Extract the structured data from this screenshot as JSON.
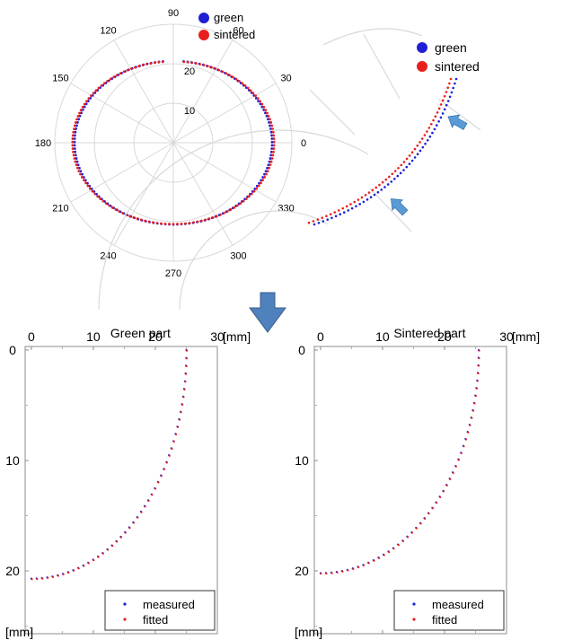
{
  "chart_data": [
    {
      "type": "scatter",
      "subtype": "polar",
      "title": "",
      "angle_ticks": [
        "0",
        "30",
        "60",
        "90",
        "120",
        "150",
        "180",
        "210",
        "240",
        "270",
        "300",
        "330"
      ],
      "radial_ticks": [
        "10",
        "20"
      ],
      "rlim": [
        0,
        30
      ],
      "grid": true,
      "legend": {
        "position": "top-right",
        "entries": [
          "green",
          "sintered"
        ]
      },
      "series": [
        {
          "name": "green",
          "color": "#1f1fd6",
          "shape": "ellipse",
          "a": 25,
          "b": 20.7,
          "theta_range_deg": [
            96,
            444
          ]
        },
        {
          "name": "sintered",
          "color": "#e8201c",
          "shape": "ellipse",
          "a": 25.5,
          "b": 20.2,
          "theta_range_deg": [
            96,
            444
          ]
        }
      ]
    },
    {
      "type": "scatter",
      "subtype": "zoomed-polar-detail",
      "grid": true,
      "legend": {
        "position": "top-right",
        "entries": [
          "green",
          "sintered"
        ]
      },
      "annotations": [
        "arrow",
        "arrow"
      ],
      "series": [
        {
          "name": "green",
          "color": "#1f1fd6"
        },
        {
          "name": "sintered",
          "color": "#e8201c"
        }
      ]
    },
    {
      "type": "scatter",
      "title": "Green part",
      "x_ticks": [
        "0",
        "10",
        "20",
        "30"
      ],
      "y_ticks": [
        "0",
        "10",
        "20"
      ],
      "xlim": [
        -1,
        30
      ],
      "ylim": [
        0,
        25
      ],
      "x_unit": "[mm]",
      "y_unit": "[mm]",
      "legend": {
        "position": "bottom-right",
        "entries": [
          "measured",
          "fitted"
        ]
      },
      "series": [
        {
          "name": "measured",
          "color": "#1f1fd6",
          "shape": "quarter-ellipse",
          "a": 25,
          "b": 20.7
        },
        {
          "name": "fitted",
          "color": "#e8201c",
          "shape": "quarter-ellipse",
          "a": 25,
          "b": 20.7
        }
      ]
    },
    {
      "type": "scatter",
      "title": "Sintered part",
      "x_ticks": [
        "0",
        "10",
        "20",
        "30"
      ],
      "y_ticks": [
        "0",
        "10",
        "20"
      ],
      "xlim": [
        -1,
        30
      ],
      "ylim": [
        0,
        25
      ],
      "x_unit": "[mm]",
      "y_unit": "[mm]",
      "legend": {
        "position": "bottom-right",
        "entries": [
          "measured",
          "fitted"
        ]
      },
      "series": [
        {
          "name": "measured",
          "color": "#1f1fd6",
          "shape": "quarter-ellipse",
          "a": 25.5,
          "b": 20.2
        },
        {
          "name": "fitted",
          "color": "#e8201c",
          "shape": "quarter-ellipse",
          "a": 25.5,
          "b": 20.2
        }
      ]
    }
  ],
  "colors": {
    "green": "#1f1fd6",
    "sintered": "#e8201c",
    "arrow": "#5b9bd5",
    "grid": "#d9d9d9"
  }
}
